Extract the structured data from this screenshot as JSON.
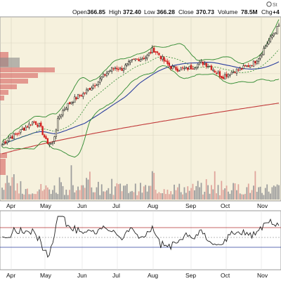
{
  "header": {
    "items": [
      {
        "key": "open",
        "label": "Open",
        "value": "366.85"
      },
      {
        "key": "high",
        "label": "High",
        "value": "372.40"
      },
      {
        "key": "low",
        "label": "Low",
        "value": "366.28"
      },
      {
        "key": "close",
        "label": "Close",
        "value": "370.73"
      },
      {
        "key": "volume",
        "label": "Volume",
        "value": "78.5M"
      },
      {
        "key": "chg",
        "label": "Chg",
        "value": "+4"
      }
    ],
    "watermark": "St"
  },
  "colors": {
    "up": "#1a1a1a",
    "down": "#d42020",
    "price_panel_bg": "#f6f1dd",
    "band": "#2f8a2f",
    "sma_short": "#2f8a2f",
    "sma_mid": "#2c3f9e",
    "sma_long": "#c23b3b",
    "volume_up": "#9e9e9e",
    "volume_down": "#e0a59c",
    "volume_zone": "#d45050",
    "indicator_line": "#222222",
    "indicator_ref": "#b03030"
  },
  "chart_data": [
    {
      "type": "candlestick",
      "panel": "price",
      "x_labels": [
        "Apr",
        "May",
        "Jun",
        "Jul",
        "Aug",
        "Sep",
        "Oct",
        "Nov"
      ],
      "ylim": [
        282,
        376
      ],
      "grid": true,
      "weekly_close": [
        294,
        298,
        300,
        303,
        306,
        309,
        306,
        296,
        294,
        312,
        318,
        322,
        325,
        327,
        331,
        334,
        338,
        342,
        344,
        343,
        346,
        349,
        350,
        351,
        356,
        352,
        347,
        344,
        343,
        343,
        344,
        346,
        347,
        345,
        341,
        338,
        340,
        342,
        343,
        345,
        347,
        352,
        359,
        365,
        371
      ],
      "overlays": [
        "upper Bollinger band",
        "lower Bollinger band",
        "short moving average (dashed)",
        "medium moving average",
        "long moving average"
      ],
      "price_by_volume_zones": 9
    },
    {
      "type": "bar",
      "panel": "volume",
      "x_labels": [
        "Apr",
        "May",
        "Jun",
        "Jul",
        "Aug",
        "Sep",
        "Oct",
        "Nov"
      ]
    },
    {
      "type": "line",
      "panel": "indicator",
      "x_labels": [
        "Apr",
        "May",
        "Jun",
        "Jul",
        "Aug",
        "Sep",
        "Oct",
        "Nov"
      ],
      "reference_lines": [
        "upper",
        "middle",
        "lower"
      ]
    }
  ]
}
